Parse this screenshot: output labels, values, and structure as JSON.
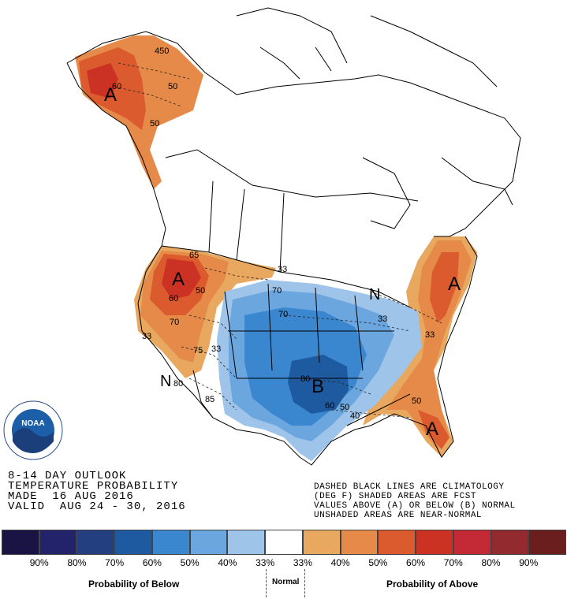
{
  "map": {
    "labels": [
      "A",
      "A",
      "A",
      "A",
      "A",
      "B",
      "N",
      "N"
    ],
    "contours": [
      "450",
      "60",
      "50",
      "50",
      "65",
      "60",
      "50",
      "70",
      "33",
      "70",
      "33",
      "75",
      "33",
      "80",
      "85",
      "80",
      "60",
      "50",
      "40",
      "33",
      "50",
      "33",
      "70"
    ]
  },
  "logo": {
    "text": "NOAA",
    "ring_text": "NATIONAL OCEANIC AND ATMOSPHERIC ADMINISTRATION · U.S. DEPARTMENT OF COMMERCE"
  },
  "title": {
    "line1": "8-14 DAY OUTLOOK",
    "line2": "TEMPERATURE PROBABILITY",
    "line3": "MADE  16 AUG 2016",
    "line4": "VALID  AUG 24 - 30, 2016"
  },
  "notes": {
    "line1": "DASHED BLACK LINES ARE CLIMATOLOGY",
    "line2": "(DEG F) SHADED AREAS ARE FCST",
    "line3": "VALUES ABOVE (A) OR BELOW (B) NORMAL",
    "line4": "UNSHADED AREAS ARE NEAR-NORMAL"
  },
  "legend": {
    "colors": [
      "#1a1445",
      "#23236b",
      "#243f80",
      "#1e5aa0",
      "#3a86cf",
      "#6ba6de",
      "#9ec4ea",
      "#ffffff",
      "#e8a860",
      "#e58a48",
      "#db5a2e",
      "#cc3224",
      "#c42a36",
      "#932a30",
      "#6a1e1e"
    ],
    "labels": [
      "90%",
      "80%",
      "70%",
      "60%",
      "50%",
      "40%",
      "33%",
      "33%",
      "40%",
      "50%",
      "60%",
      "70%",
      "80%",
      "90%"
    ],
    "below_title": "Probability of Below",
    "normal_title": "Normal",
    "above_title": "Probability of Above"
  }
}
